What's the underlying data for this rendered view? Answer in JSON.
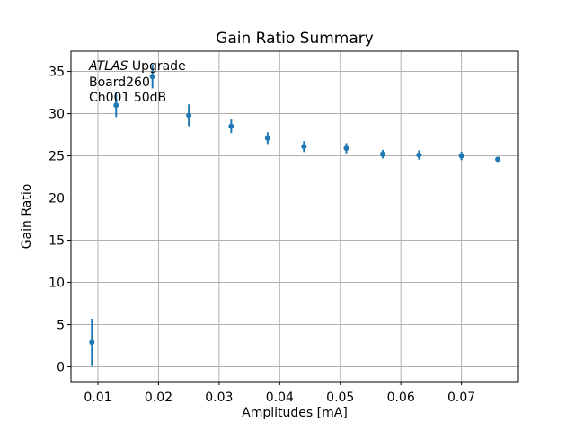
{
  "chart_data": {
    "type": "scatter",
    "title": "Gain Ratio Summary",
    "xlabel": "Amplitudes [mA]",
    "ylabel": "Gain Ratio",
    "annotation": {
      "line1_italic": "ATLAS",
      "line1_rest": " Upgrade",
      "line2": "Board260",
      "line3": "Ch001 50dB"
    },
    "grid": true,
    "legend": false,
    "marker": "o",
    "error_bars": "y",
    "xlim": [
      0.00555,
      0.0794
    ],
    "ylim": [
      -1.75,
      37.4
    ],
    "x_ticks": [
      0.01,
      0.02,
      0.03,
      0.04,
      0.05,
      0.06,
      0.07
    ],
    "x_tick_labels": [
      "0.01",
      "0.02",
      "0.03",
      "0.04",
      "0.05",
      "0.06",
      "0.07"
    ],
    "y_ticks": [
      0,
      5,
      10,
      15,
      20,
      25,
      30,
      35
    ],
    "y_tick_labels": [
      "0",
      "5",
      "10",
      "15",
      "20",
      "25",
      "30",
      "35"
    ],
    "colors": {
      "marker": "#1f77b4",
      "grid": "#b0b0b0",
      "spine": "#000000",
      "text": "#000000",
      "background": "#ffffff"
    },
    "series": [
      {
        "name": "gain_ratio",
        "x": [
          0.009,
          0.013,
          0.019,
          0.025,
          0.032,
          0.038,
          0.044,
          0.051,
          0.057,
          0.063,
          0.07,
          0.076
        ],
        "y": [
          2.9,
          31.0,
          34.4,
          29.8,
          28.5,
          27.1,
          26.1,
          25.9,
          25.2,
          25.1,
          25.0,
          24.6
        ],
        "yerr": [
          2.8,
          1.4,
          1.4,
          1.3,
          0.8,
          0.7,
          0.65,
          0.6,
          0.5,
          0.55,
          0.5,
          0.3
        ]
      }
    ]
  }
}
